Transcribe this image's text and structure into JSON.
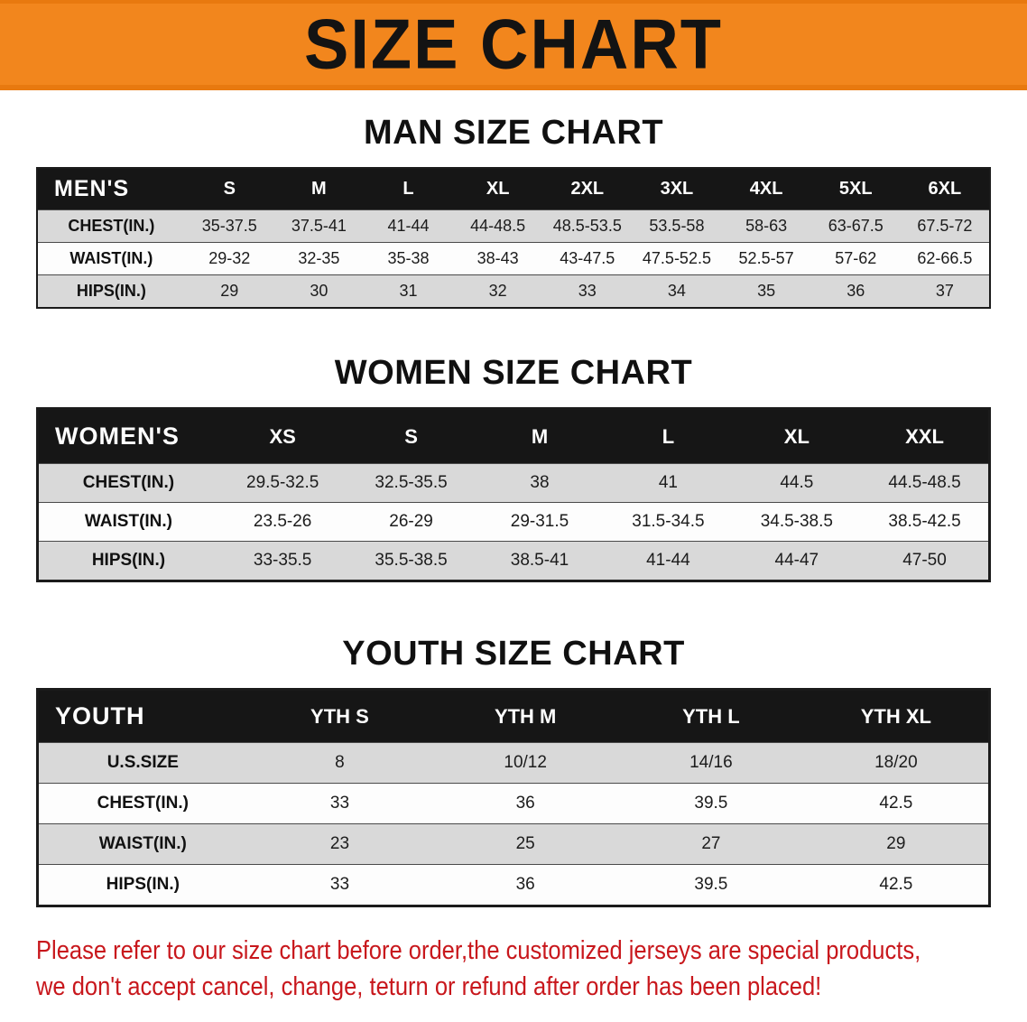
{
  "banner": {
    "title": "SIZE CHART"
  },
  "colors": {
    "banner_orange": "#f2861d",
    "table_header_black": "#161616",
    "row_gray": "#d9d9d9",
    "disclaimer_red": "#c8171c"
  },
  "sections": [
    {
      "heading": "MAN SIZE CHART",
      "table": {
        "label": "MEN'S",
        "columns": [
          "S",
          "M",
          "L",
          "XL",
          "2XL",
          "3XL",
          "4XL",
          "5XL",
          "6XL"
        ],
        "rows": [
          {
            "label": "CHEST(IN.)",
            "values": [
              "35-37.5",
              "37.5-41",
              "41-44",
              "44-48.5",
              "48.5-53.5",
              "53.5-58",
              "58-63",
              "63-67.5",
              "67.5-72"
            ]
          },
          {
            "label": "WAIST(IN.)",
            "values": [
              "29-32",
              "32-35",
              "35-38",
              "38-43",
              "43-47.5",
              "47.5-52.5",
              "52.5-57",
              "57-62",
              "62-66.5"
            ]
          },
          {
            "label": "HIPS(IN.)",
            "values": [
              "29",
              "30",
              "31",
              "32",
              "33",
              "34",
              "35",
              "36",
              "37"
            ]
          }
        ]
      }
    },
    {
      "heading": "WOMEN SIZE CHART",
      "table": {
        "label": "WOMEN'S",
        "columns": [
          "XS",
          "S",
          "M",
          "L",
          "XL",
          "XXL"
        ],
        "rows": [
          {
            "label": "CHEST(IN.)",
            "values": [
              "29.5-32.5",
              "32.5-35.5",
              "38",
              "41",
              "44.5",
              "44.5-48.5"
            ]
          },
          {
            "label": "WAIST(IN.)",
            "values": [
              "23.5-26",
              "26-29",
              "29-31.5",
              "31.5-34.5",
              "34.5-38.5",
              "38.5-42.5"
            ]
          },
          {
            "label": "HIPS(IN.)",
            "values": [
              "33-35.5",
              "35.5-38.5",
              "38.5-41",
              "41-44",
              "44-47",
              "47-50"
            ]
          }
        ]
      }
    },
    {
      "heading": "YOUTH SIZE CHART",
      "table": {
        "label": "YOUTH",
        "columns": [
          "YTH S",
          "YTH M",
          "YTH L",
          "YTH XL"
        ],
        "rows": [
          {
            "label": "U.S.SIZE",
            "values": [
              "8",
              "10/12",
              "14/16",
              "18/20"
            ]
          },
          {
            "label": "CHEST(IN.)",
            "values": [
              "33",
              "36",
              "39.5",
              "42.5"
            ]
          },
          {
            "label": "WAIST(IN.)",
            "values": [
              "23",
              "25",
              "27",
              "29"
            ]
          },
          {
            "label": "HIPS(IN.)",
            "values": [
              "33",
              "36",
              "39.5",
              "42.5"
            ]
          }
        ]
      }
    }
  ],
  "disclaimer": {
    "line1": "Please refer to our size chart before order,the customized jerseys are special products,",
    "line2": "we don't accept cancel, change, teturn or refund after order has been placed!"
  }
}
